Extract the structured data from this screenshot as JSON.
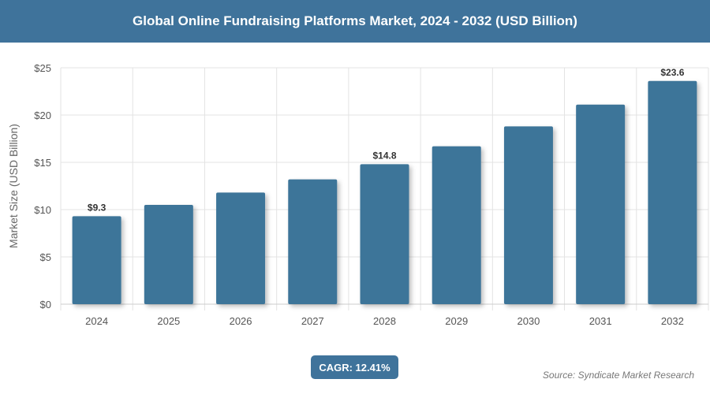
{
  "header": {
    "title": "Global Online Fundraising Platforms Market, 2024 - 2032 (USD Billion)"
  },
  "chart_data": {
    "type": "bar",
    "title": "Global Online Fundraising Platforms Market, 2024 - 2032 (USD Billion)",
    "xlabel": "",
    "ylabel": "Market Size (USD Billion)",
    "categories": [
      "2024",
      "2025",
      "2026",
      "2027",
      "2028",
      "2029",
      "2030",
      "2031",
      "2032"
    ],
    "values": [
      9.3,
      10.5,
      11.8,
      13.2,
      14.8,
      16.7,
      18.8,
      21.1,
      23.6
    ],
    "data_labels": {
      "0": "$9.3",
      "4": "$14.8",
      "8": "$23.6"
    },
    "ylim": [
      0,
      25
    ],
    "yticks": [
      "$0",
      "$5",
      "$10",
      "$15",
      "$20",
      "$25"
    ],
    "grid": true,
    "bar_color": "#3d7499"
  },
  "footer": {
    "cagr": "CAGR: 12.41%",
    "source": "Source: Syndicate Market Research"
  }
}
